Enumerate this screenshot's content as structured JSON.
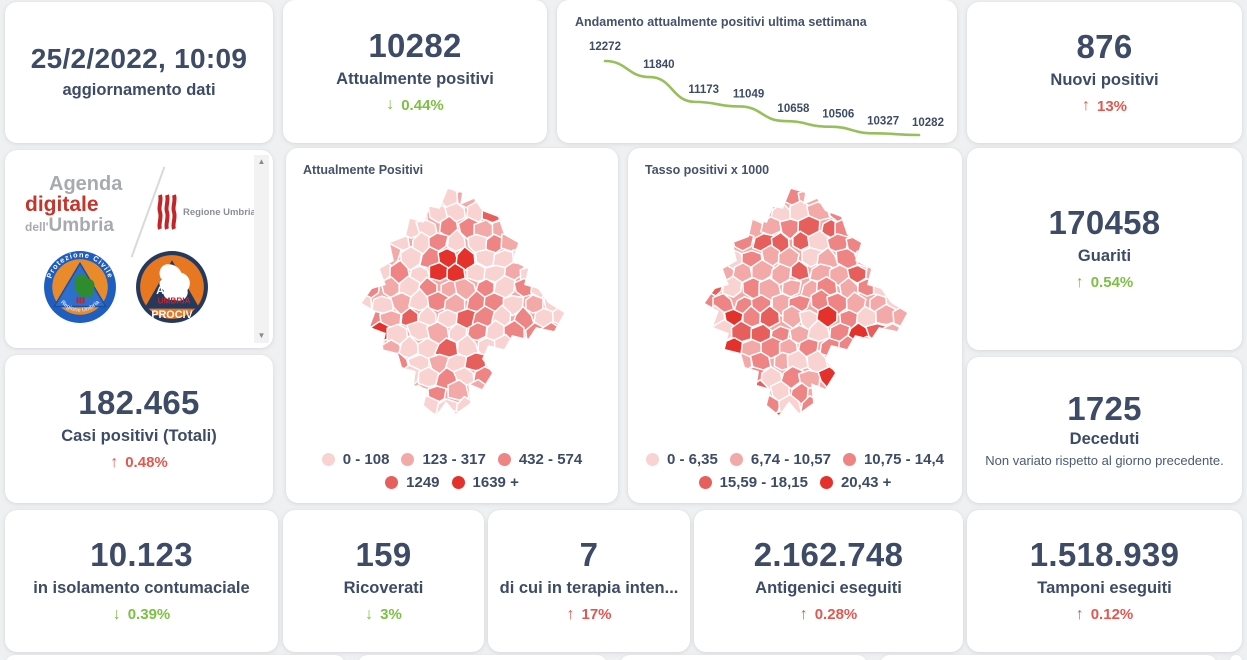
{
  "colors": {
    "background": "#eef0f1",
    "card": "#ffffff",
    "number": "#3e4b66",
    "green": "#7cc043",
    "red": "#e2574e",
    "chart_line": "#97c05c",
    "map_palette": [
      "#f8d3d2",
      "#f3a9a8",
      "#ee8584",
      "#e75f5c",
      "#e5312b"
    ]
  },
  "cards": {
    "updated": {
      "value": "25/2/2022, 10:09",
      "label": "aggiornamento dati"
    },
    "attualmente_positivi": {
      "value": "10282",
      "label": "Attualmente positivi",
      "arrow": "↓",
      "trend": "0.44%"
    },
    "nuovi_positivi": {
      "value": "876",
      "label": "Nuovi positivi",
      "arrow": "↑",
      "trend": "13%"
    },
    "guariti": {
      "value": "170458",
      "label": "Guariti",
      "arrow": "↑",
      "trend": "0.54%"
    },
    "casi_totali": {
      "value": "182.465",
      "label": "Casi positivi (Totali)",
      "arrow": "↑",
      "trend": "0.48%"
    },
    "deceduti": {
      "value": "1725",
      "label": "Deceduti",
      "note": "Non variato rispetto al giorno precedente."
    },
    "isolamento": {
      "value": "10.123",
      "label": "in isolamento contumaciale",
      "arrow": "↓",
      "trend": "0.39%"
    },
    "ricoverati": {
      "value": "159",
      "label": "Ricoverati",
      "arrow": "↓",
      "trend": "3%"
    },
    "terapia_intensiva": {
      "value": "7",
      "label": "di cui in terapia inten...",
      "arrow": "↑",
      "trend": "17%"
    },
    "antigenici": {
      "value": "2.162.748",
      "label": "Antigenici eseguiti",
      "arrow": "↑",
      "trend": "0.28%"
    },
    "tamponi": {
      "value": "1.518.939",
      "label": "Tamponi eseguiti",
      "arrow": "↑",
      "trend": "0.12%"
    }
  },
  "chart_data": [
    {
      "type": "line",
      "title": "Andamento attualmente positivi ultima settimana",
      "values": [
        12272,
        11840,
        11173,
        11049,
        10658,
        10506,
        10327,
        10282
      ],
      "series_label": "attualmente positivi",
      "line_color": "#97c05c",
      "point_labels_shown": true,
      "axes_shown": false
    },
    {
      "type": "choropleth",
      "title": "Attualmente Positivi",
      "region": "Umbria",
      "legend": [
        {
          "label": "0 - 108",
          "color": "#f8d3d2"
        },
        {
          "label": "123 - 317",
          "color": "#f3a9a8"
        },
        {
          "label": "432 - 574",
          "color": "#ee8584"
        },
        {
          "label": "1249",
          "color": "#e75f5c"
        },
        {
          "label": "1639 +",
          "color": "#e5312b"
        }
      ]
    },
    {
      "type": "choropleth",
      "title": "Tasso positivi x 1000",
      "region": "Umbria",
      "legend": [
        {
          "label": "0 - 6,35",
          "color": "#f8d3d2"
        },
        {
          "label": "6,74 - 10,57",
          "color": "#f3a9a8"
        },
        {
          "label": "10,75 - 14,4",
          "color": "#ee8584"
        },
        {
          "label": "15,59 - 18,15",
          "color": "#e75f5c"
        },
        {
          "label": "20,43 +",
          "color": "#e5312b"
        }
      ]
    }
  ],
  "logos": {
    "agenda_line1": "Agenda",
    "agenda_line2": "digitale",
    "agenda_line3_small": "dell'",
    "agenda_line3": "Umbria",
    "regione_umbria": "Regione Umbria",
    "prociv_top": "Protezione Civile",
    "prociv_bottom": "Regione Umbria",
    "anci_line1": "ANCI",
    "anci_line2": "UMBRIA",
    "anci_line3": "PROCIV"
  }
}
